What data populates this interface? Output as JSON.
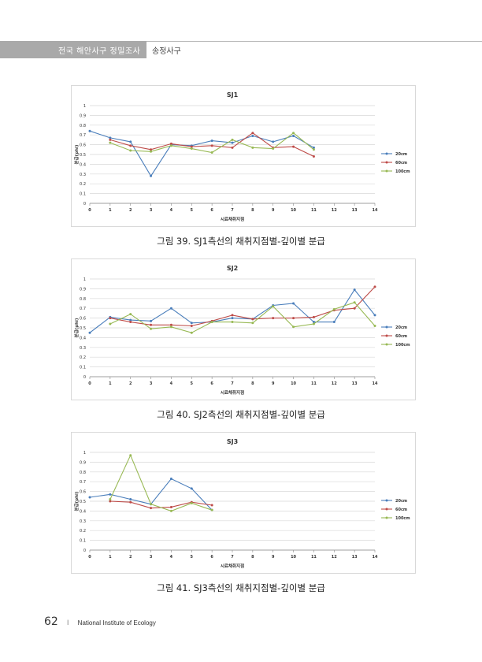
{
  "header": {
    "title": "전국 해안사구 정밀조사",
    "subtitle": "송정사구"
  },
  "footer": {
    "page_number": "62",
    "separator": "I",
    "institute": "National Institute of Ecology"
  },
  "colors": {
    "20cm": "#4a7ebb",
    "60cm": "#be4b48",
    "100cm": "#98b954"
  },
  "chart_data": [
    {
      "type": "line",
      "title": "SJ1",
      "xlabel": "시료채취지점",
      "ylabel": "분급(phi)",
      "xlim": [
        0,
        14
      ],
      "ylim": [
        0,
        1
      ],
      "x_ticks": [
        0,
        1,
        2,
        3,
        4,
        5,
        6,
        7,
        8,
        9,
        10,
        11,
        12,
        13,
        14
      ],
      "y_ticks": [
        0,
        0.1,
        0.2,
        0.3,
        0.4,
        0.5,
        0.6,
        0.7,
        0.8,
        0.9,
        1
      ],
      "grid": true,
      "legend": "right",
      "caption": "그림 39. SJ1측선의 채취지점별-깊이별 분급",
      "series": [
        {
          "name": "20cm",
          "color": "#4a7ebb",
          "x": [
            0,
            1,
            2,
            3,
            4,
            5,
            6,
            7,
            8,
            9,
            10,
            11
          ],
          "values": [
            0.74,
            0.67,
            0.63,
            0.28,
            0.6,
            0.59,
            0.64,
            0.62,
            0.69,
            0.63,
            0.69,
            0.57
          ]
        },
        {
          "name": "60cm",
          "color": "#be4b48",
          "x": [
            1,
            2,
            3,
            4,
            5,
            6,
            7,
            8,
            9,
            10,
            11
          ],
          "values": [
            0.65,
            0.59,
            0.55,
            0.61,
            0.58,
            0.59,
            0.57,
            0.72,
            0.57,
            0.58,
            0.48
          ]
        },
        {
          "name": "100cm",
          "color": "#98b954",
          "x": [
            1,
            2,
            3,
            4,
            5,
            6,
            7,
            8,
            9,
            10,
            11
          ],
          "values": [
            0.62,
            0.54,
            0.53,
            0.59,
            0.56,
            0.52,
            0.65,
            0.57,
            0.56,
            0.72,
            0.55
          ]
        }
      ]
    },
    {
      "type": "line",
      "title": "SJ2",
      "xlabel": "시료채취지점",
      "ylabel": "분급(phi)",
      "xlim": [
        0,
        14
      ],
      "ylim": [
        0,
        1
      ],
      "x_ticks": [
        0,
        1,
        2,
        3,
        4,
        5,
        6,
        7,
        8,
        9,
        10,
        11,
        12,
        13,
        14
      ],
      "y_ticks": [
        0,
        0.1,
        0.2,
        0.3,
        0.4,
        0.5,
        0.6,
        0.7,
        0.8,
        0.9,
        1
      ],
      "grid": true,
      "legend": "right",
      "caption": "그림 40. SJ2측선의 채취지점별-깊이별 분급",
      "series": [
        {
          "name": "20cm",
          "color": "#4a7ebb",
          "x": [
            0,
            1,
            2,
            3,
            4,
            5,
            6,
            7,
            8,
            9,
            10,
            11,
            12,
            13,
            14
          ],
          "values": [
            0.45,
            0.61,
            0.58,
            0.57,
            0.7,
            0.55,
            0.56,
            0.6,
            0.59,
            0.73,
            0.75,
            0.56,
            0.56,
            0.89,
            0.63
          ]
        },
        {
          "name": "60cm",
          "color": "#be4b48",
          "x": [
            1,
            2,
            3,
            4,
            5,
            6,
            7,
            8,
            9,
            10,
            11,
            12,
            13,
            14
          ],
          "values": [
            0.6,
            0.56,
            0.53,
            0.53,
            0.52,
            0.57,
            0.63,
            0.59,
            0.6,
            0.6,
            0.61,
            0.68,
            0.7,
            0.92
          ]
        },
        {
          "name": "100cm",
          "color": "#98b954",
          "x": [
            1,
            2,
            3,
            4,
            5,
            6,
            7,
            8,
            9,
            10,
            11,
            12,
            13,
            14
          ],
          "values": [
            0.54,
            0.64,
            0.49,
            0.51,
            0.45,
            0.56,
            0.56,
            0.55,
            0.72,
            0.51,
            0.54,
            0.69,
            0.76,
            0.52
          ]
        }
      ]
    },
    {
      "type": "line",
      "title": "SJ3",
      "xlabel": "시료채취지점",
      "ylabel": "분급(phi)",
      "xlim": [
        0,
        14
      ],
      "ylim": [
        0,
        1
      ],
      "x_ticks": [
        0,
        1,
        2,
        3,
        4,
        5,
        6,
        7,
        8,
        9,
        10,
        11,
        12,
        13,
        14
      ],
      "y_ticks": [
        0,
        0.1,
        0.2,
        0.3,
        0.4,
        0.5,
        0.6,
        0.7,
        0.8,
        0.9,
        1
      ],
      "grid": true,
      "legend": "right",
      "caption": "그림 41. SJ3측선의 채취지점별-깊이별 분급",
      "series": [
        {
          "name": "20cm",
          "color": "#4a7ebb",
          "x": [
            0,
            1,
            2,
            3,
            4,
            5,
            6
          ],
          "values": [
            0.54,
            0.57,
            0.52,
            0.47,
            0.73,
            0.63,
            0.41
          ]
        },
        {
          "name": "60cm",
          "color": "#be4b48",
          "x": [
            1,
            2,
            3,
            4,
            5,
            6
          ],
          "values": [
            0.5,
            0.49,
            0.43,
            0.44,
            0.49,
            0.46
          ]
        },
        {
          "name": "100cm",
          "color": "#98b954",
          "x": [
            1,
            2,
            3,
            4,
            5,
            6
          ],
          "values": [
            0.52,
            0.97,
            0.47,
            0.4,
            0.48,
            0.41
          ]
        }
      ]
    }
  ]
}
